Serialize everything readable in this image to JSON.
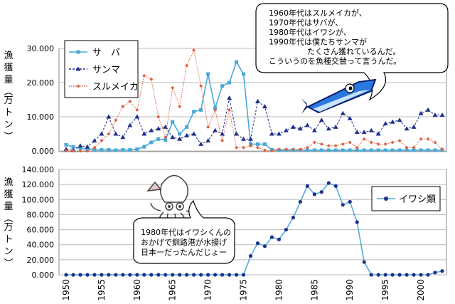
{
  "chart_data": [
    {
      "type": "line",
      "ylabel": "漁獲量（万トン）",
      "ylim": [
        0,
        30000
      ],
      "yticks": [
        "0.000",
        "10.000",
        "20.000",
        "30.000"
      ],
      "x": [
        1950,
        1951,
        1952,
        1953,
        1954,
        1955,
        1956,
        1957,
        1958,
        1959,
        1960,
        1961,
        1962,
        1963,
        1964,
        1965,
        1966,
        1967,
        1968,
        1969,
        1970,
        1971,
        1972,
        1973,
        1974,
        1975,
        1976,
        1977,
        1978,
        1979,
        1980,
        1981,
        1982,
        1983,
        1984,
        1985,
        1986,
        1987,
        1988,
        1989,
        1990,
        1991,
        1992,
        1993,
        1994,
        1995,
        1996,
        1997,
        1998,
        1999,
        2000,
        2001,
        2002,
        2003
      ],
      "legend_position": "top-left",
      "series": [
        {
          "name": "サ　バ",
          "color": "#4aa8d8",
          "marker": "square",
          "values": [
            1800,
            1200,
            800,
            500,
            300,
            300,
            300,
            200,
            300,
            300,
            500,
            1200,
            2500,
            3500,
            3200,
            8500,
            5000,
            7000,
            11500,
            12000,
            22500,
            12500,
            19000,
            20000,
            26000,
            22500,
            2000,
            2000,
            2000,
            300,
            200,
            200,
            200,
            200,
            200,
            200,
            200,
            200,
            200,
            200,
            200,
            200,
            200,
            200,
            200,
            200,
            200,
            200,
            200,
            200,
            200,
            200,
            200,
            200
          ]
        },
        {
          "name": "サンマ",
          "color": "#1e2f8c",
          "marker": "triangle",
          "values": [
            500,
            200,
            1500,
            1200,
            3000,
            5000,
            10000,
            5000,
            4000,
            7500,
            10000,
            5000,
            6000,
            6500,
            7000,
            4000,
            3500,
            4500,
            5000,
            2000,
            3000,
            6000,
            5000,
            15500,
            5000,
            3500,
            3500,
            14500,
            13000,
            5000,
            5000,
            6000,
            7000,
            6500,
            7500,
            6000,
            9000,
            6500,
            7000,
            11000,
            9500,
            5500,
            5500,
            6000,
            5000,
            8000,
            8500,
            9000,
            6500,
            7000,
            11000,
            12000,
            10500,
            10500
          ]
        },
        {
          "name": "スルメイカ",
          "color": "#e06040",
          "marker": "diamond",
          "values": [
            0,
            0,
            0,
            0,
            1000,
            3000,
            5000,
            9000,
            13000,
            14500,
            12000,
            22000,
            21000,
            10000,
            4000,
            18500,
            13000,
            25000,
            29500,
            19000,
            7000,
            12000,
            3000,
            12000,
            1000,
            1000,
            1500,
            1000,
            200,
            0,
            500,
            500,
            500,
            500,
            1000,
            2500,
            2000,
            1500,
            1500,
            2000,
            2500,
            1000,
            3500,
            2500,
            2000,
            2000,
            2500,
            3000,
            1000,
            1000,
            3500,
            3500,
            2500,
            500
          ]
        }
      ]
    },
    {
      "type": "line",
      "ylabel": "漁獲量（万トン）",
      "ylim": [
        0,
        140000
      ],
      "yticks": [
        "0.000",
        "20.000",
        "40.000",
        "60.000",
        "80.000",
        "100.000",
        "120.000",
        "140.000"
      ],
      "xticks": [
        "1950",
        "1955",
        "1960",
        "1965",
        "1970",
        "1975",
        "1980",
        "1985",
        "1990",
        "1995",
        "2000"
      ],
      "x": [
        1950,
        1951,
        1952,
        1953,
        1954,
        1955,
        1956,
        1957,
        1958,
        1959,
        1960,
        1961,
        1962,
        1963,
        1964,
        1965,
        1966,
        1967,
        1968,
        1969,
        1970,
        1971,
        1972,
        1973,
        1974,
        1975,
        1976,
        1977,
        1978,
        1979,
        1980,
        1981,
        1982,
        1983,
        1984,
        1985,
        1986,
        1987,
        1988,
        1989,
        1990,
        1991,
        1992,
        1993,
        1994,
        1995,
        1996,
        1997,
        1998,
        1999,
        2000,
        2001,
        2002,
        2003
      ],
      "legend_position": "right",
      "series": [
        {
          "name": "イワシ類",
          "color": "#4aa8d8",
          "marker_color": "#1e2f8c",
          "marker": "circle",
          "values": [
            0,
            0,
            0,
            0,
            0,
            0,
            0,
            0,
            0,
            0,
            0,
            0,
            0,
            0,
            0,
            0,
            0,
            0,
            0,
            0,
            0,
            0,
            0,
            0,
            0,
            0,
            25000,
            42000,
            38000,
            50000,
            47000,
            60000,
            76000,
            97000,
            118000,
            107000,
            110000,
            122000,
            118000,
            93000,
            97000,
            70000,
            17000,
            0,
            0,
            0,
            0,
            0,
            0,
            0,
            0,
            0,
            3000,
            5000
          ]
        }
      ]
    }
  ],
  "annotations": {
    "top_bubble": [
      "1960年代はスルメイカが、",
      "1970年代はサバが、",
      "1980年代はイワシが、",
      "1990年代は僕たちサンマが",
      "たくさん獲れているんだ。",
      "こういうのを魚種交替って言うんだ。"
    ],
    "bottom_bubble": [
      "1980年代はイワシくんの",
      "おかげで釧路港が水揚げ",
      "日本一だったんだじょー"
    ]
  }
}
